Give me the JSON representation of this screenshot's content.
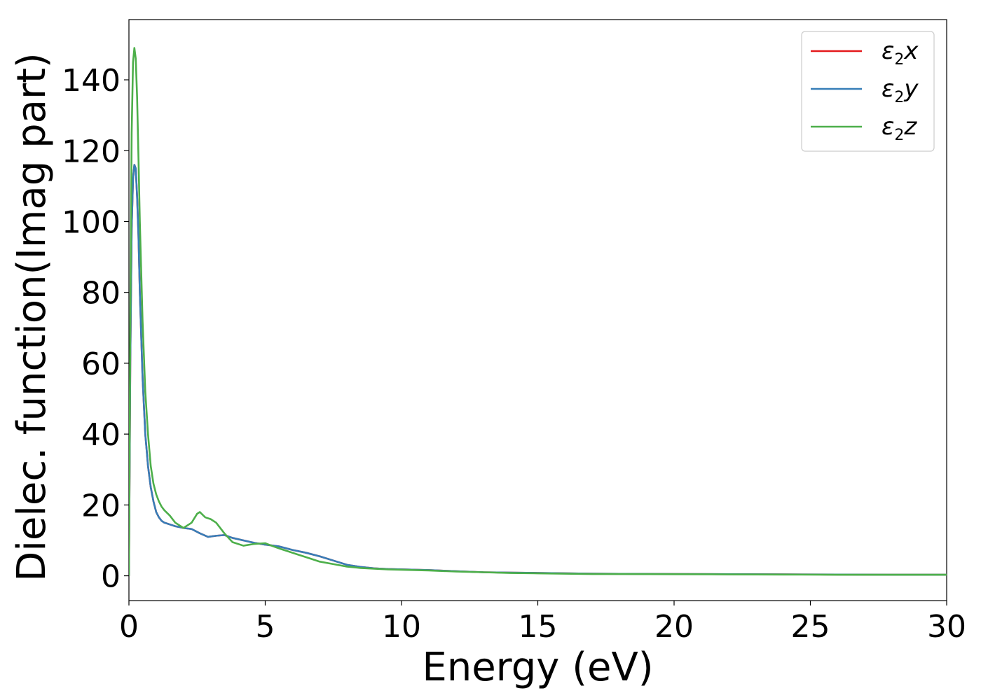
{
  "chart_data": {
    "type": "line",
    "xlabel": "Energy (eV)",
    "ylabel": "Dielec. function(Imag part)",
    "xlim": [
      0,
      30
    ],
    "ylim": [
      -7,
      157
    ],
    "xticks": [
      0,
      5,
      10,
      15,
      20,
      25,
      30
    ],
    "yticks": [
      0,
      20,
      40,
      60,
      80,
      100,
      120,
      140
    ],
    "grid": false,
    "legend": "top-right",
    "series": [
      {
        "name": "ε₂x",
        "label_base": "ε",
        "label_sub": "2",
        "label_tail": "x",
        "color": "#e41a1c",
        "x": [
          0,
          0.05,
          0.1,
          0.15,
          0.2,
          0.25,
          0.3,
          0.35,
          0.4,
          0.5,
          0.6,
          0.7,
          0.8,
          0.9,
          1.0,
          1.1,
          1.2,
          1.3,
          1.5,
          1.7,
          2.0,
          2.3,
          2.6,
          2.9,
          3.2,
          3.5,
          3.8,
          4.2,
          4.6,
          5.0,
          5.5,
          6.0,
          6.5,
          7.0,
          7.5,
          8.0,
          8.5,
          9.0,
          9.5,
          10.0,
          11.0,
          12.0,
          13.0,
          14.0,
          15.0,
          16.0,
          17.0,
          18.0,
          20.0,
          22.0,
          24.0,
          26.0,
          28.0,
          30.0
        ],
        "y": [
          0,
          60,
          98,
          112,
          116,
          115,
          107,
          96,
          80,
          56,
          40,
          31,
          25,
          21,
          18,
          16.5,
          15.5,
          15,
          14.5,
          14,
          13.5,
          13.2,
          12,
          11,
          11.3,
          11.5,
          10.7,
          10,
          9.3,
          8.8,
          8.3,
          7.3,
          6.5,
          5.5,
          4.3,
          3.1,
          2.5,
          2.1,
          1.9,
          1.8,
          1.6,
          1.3,
          1.0,
          0.9,
          0.8,
          0.7,
          0.6,
          0.55,
          0.5,
          0.45,
          0.4,
          0.35,
          0.3,
          0.3
        ]
      },
      {
        "name": "ε₂y",
        "label_base": "ε",
        "label_sub": "2",
        "label_tail": "y",
        "color": "#377eb8",
        "x": [
          0,
          0.05,
          0.1,
          0.15,
          0.2,
          0.25,
          0.3,
          0.35,
          0.4,
          0.5,
          0.6,
          0.7,
          0.8,
          0.9,
          1.0,
          1.1,
          1.2,
          1.3,
          1.5,
          1.7,
          2.0,
          2.3,
          2.6,
          2.9,
          3.2,
          3.5,
          3.8,
          4.2,
          4.6,
          5.0,
          5.5,
          6.0,
          6.5,
          7.0,
          7.5,
          8.0,
          8.5,
          9.0,
          9.5,
          10.0,
          11.0,
          12.0,
          13.0,
          14.0,
          15.0,
          16.0,
          17.0,
          18.0,
          20.0,
          22.0,
          24.0,
          26.0,
          28.0,
          30.0
        ],
        "y": [
          0,
          60,
          98,
          112,
          116,
          115,
          107,
          96,
          80,
          56,
          40,
          31,
          25,
          21,
          18,
          16.5,
          15.5,
          15,
          14.5,
          14,
          13.5,
          13.2,
          12,
          11,
          11.3,
          11.5,
          10.7,
          10,
          9.3,
          8.8,
          8.3,
          7.3,
          6.5,
          5.5,
          4.3,
          3.1,
          2.5,
          2.1,
          1.9,
          1.8,
          1.6,
          1.3,
          1.0,
          0.9,
          0.8,
          0.7,
          0.6,
          0.55,
          0.5,
          0.45,
          0.4,
          0.35,
          0.3,
          0.3
        ]
      },
      {
        "name": "ε₂z",
        "label_base": "ε",
        "label_sub": "2",
        "label_tail": "z",
        "color": "#4daf4a",
        "x": [
          0,
          0.05,
          0.1,
          0.15,
          0.2,
          0.25,
          0.3,
          0.35,
          0.4,
          0.5,
          0.6,
          0.7,
          0.8,
          0.9,
          1.0,
          1.1,
          1.2,
          1.3,
          1.5,
          1.7,
          2.0,
          2.3,
          2.5,
          2.6,
          2.8,
          3.0,
          3.2,
          3.5,
          3.8,
          4.2,
          4.6,
          5.0,
          5.3,
          5.6,
          5.8,
          6.2,
          6.6,
          7.0,
          7.5,
          8.0,
          8.5,
          9.0,
          9.5,
          10.0,
          11.0,
          12.0,
          13.0,
          14.0,
          15.0,
          16.0,
          17.0,
          18.0,
          20.0,
          22.0,
          24.0,
          26.0,
          28.0,
          30.0
        ],
        "y": [
          0,
          70,
          125,
          145,
          149,
          146,
          135,
          118,
          100,
          72,
          52,
          40,
          31,
          26,
          23,
          21,
          19.5,
          18.5,
          17,
          15,
          13.5,
          15,
          17.5,
          18,
          16.5,
          16,
          15,
          12,
          9.5,
          8.5,
          9,
          9.2,
          8.3,
          7.5,
          7,
          6,
          5,
          4,
          3.3,
          2.6,
          2.2,
          2.0,
          1.8,
          1.7,
          1.5,
          1.2,
          1.0,
          0.8,
          0.7,
          0.6,
          0.5,
          0.5,
          0.45,
          0.4,
          0.35,
          0.3,
          0.3,
          0.3
        ]
      }
    ]
  }
}
